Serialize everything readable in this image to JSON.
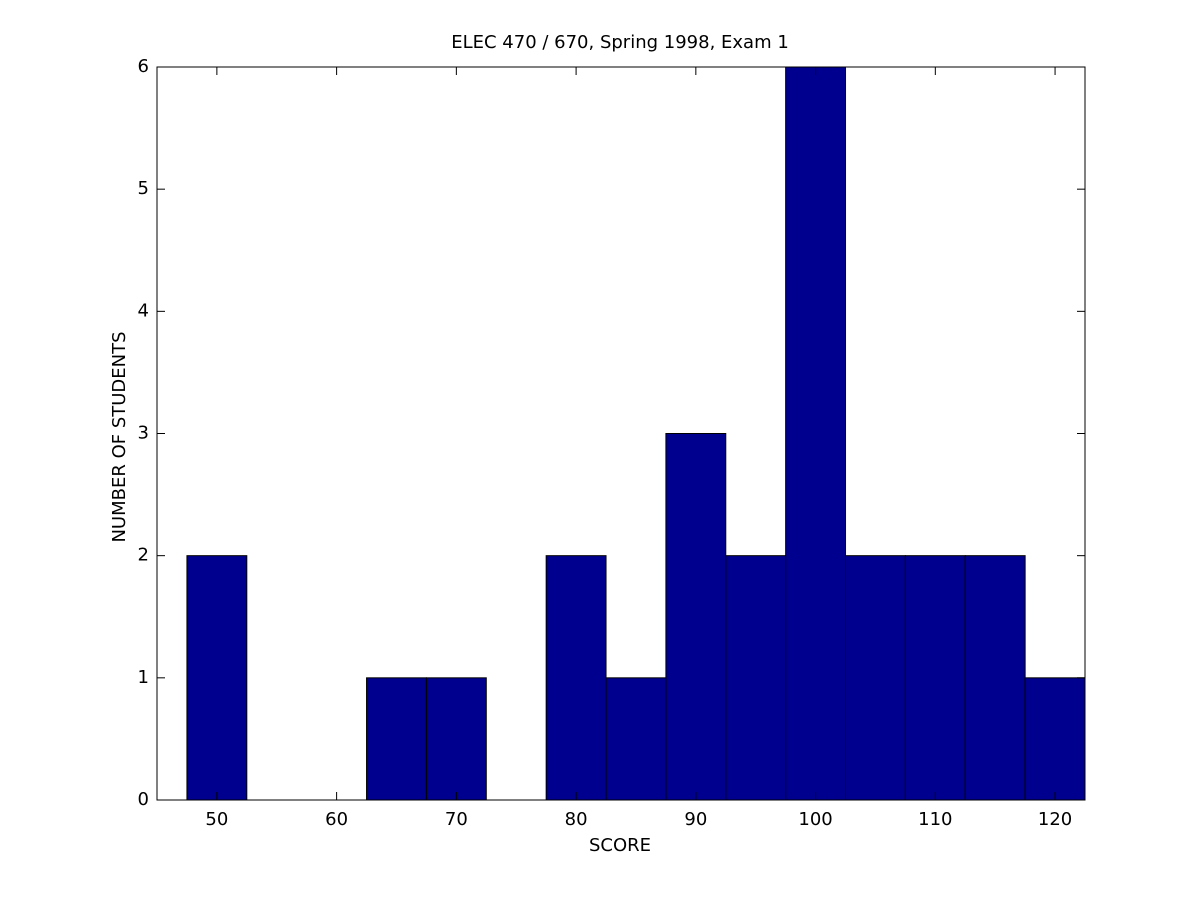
{
  "chart_data": {
    "type": "histogram",
    "title": "ELEC 470 / 670, Spring 1998, Exam 1",
    "x_label": "SCORE",
    "y_label": "NUMBER OF STUDENTS",
    "bins": [
      47.5,
      52.5,
      57.5,
      62.5,
      67.5,
      72.5,
      77.5,
      82.5,
      87.5,
      92.5,
      97.5,
      102.5,
      107.5,
      112.5,
      117.5,
      122.5
    ],
    "values": [
      2,
      0,
      0,
      1,
      1,
      0,
      2,
      1,
      3,
      2,
      6,
      2,
      2,
      2,
      1
    ],
    "color": "#00008f",
    "xlim": [
      45,
      122.5
    ],
    "xticks": [
      50,
      60,
      70,
      80,
      90,
      100,
      110,
      120
    ],
    "ylim": [
      0,
      6
    ],
    "yticks": [
      0,
      1,
      2,
      3,
      4,
      5,
      6
    ],
    "grid": false
  }
}
